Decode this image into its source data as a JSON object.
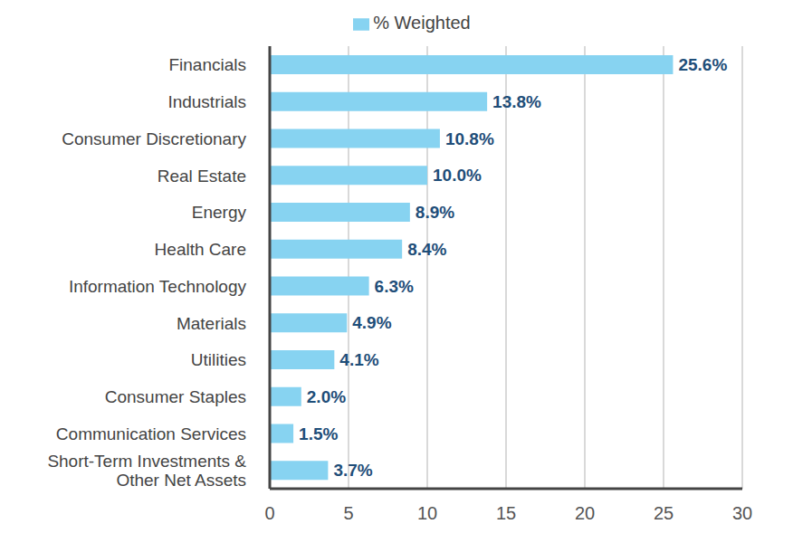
{
  "chart_data": {
    "type": "bar",
    "orientation": "horizontal",
    "categories": [
      "Financials",
      "Industrials",
      "Consumer Discretionary",
      "Real Estate",
      "Energy",
      "Health Care",
      "Information Technology",
      "Materials",
      "Utilities",
      "Consumer Staples",
      "Communication Services",
      "Short-Term Investments & Other Net Assets"
    ],
    "series": [
      {
        "name": "% Weighted",
        "color": "#87d3f1",
        "values": [
          25.6,
          13.8,
          10.8,
          10.0,
          8.9,
          8.4,
          6.3,
          4.9,
          4.1,
          2.0,
          1.5,
          3.7
        ],
        "value_labels": [
          "25.6%",
          "13.8%",
          "10.8%",
          "10.0%",
          "8.9%",
          "8.4%",
          "6.3%",
          "4.9%",
          "4.1%",
          "2.0%",
          "1.5%",
          "3.7%"
        ]
      }
    ],
    "xlim": [
      0,
      30
    ],
    "xticks": [
      0,
      5,
      10,
      15,
      20,
      25,
      30
    ],
    "grid": true,
    "data_labels": true,
    "legend": "top"
  }
}
